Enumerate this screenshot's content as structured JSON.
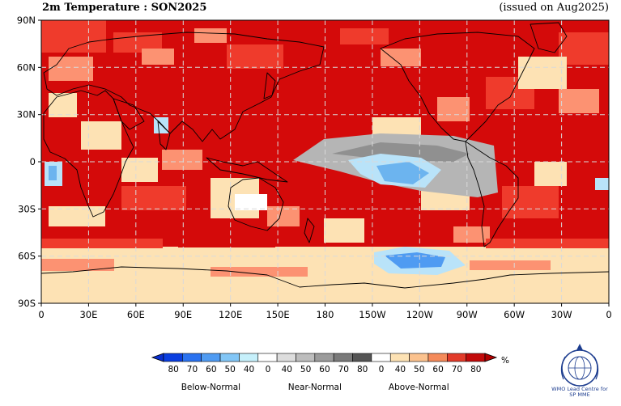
{
  "header": {
    "title": "2m Temperature : SON2025",
    "issued": "(issued on Aug2025)"
  },
  "map": {
    "lat_ticks": [
      "90N",
      "60N",
      "30N",
      "0",
      "30S",
      "60S",
      "90S"
    ],
    "lon_ticks": [
      "0",
      "30E",
      "60E",
      "90E",
      "120E",
      "150E",
      "180",
      "150W",
      "120W",
      "90W",
      "60W",
      "30W",
      "0"
    ],
    "colors": {
      "above_strong": "#d40a0a",
      "above_mid": "#ef3b2c",
      "above_light": "#fc9272",
      "above_pale": "#fde2b4",
      "near_grey": "#b5b5b5",
      "below_light": "#b9e3f9",
      "below_mid": "#6cb4ef",
      "coast": "#000000",
      "grid": "#d9d9d9"
    }
  },
  "colorbar": {
    "unit": "%",
    "below_labels": [
      "80",
      "70",
      "60",
      "50",
      "40"
    ],
    "near_labels": [
      "0",
      "40",
      "50",
      "60",
      "70",
      "80"
    ],
    "above_labels": [
      "0",
      "40",
      "50",
      "60",
      "70",
      "80"
    ],
    "group_below": "Below-Normal",
    "group_near": "Near-Normal",
    "group_above": "Above-Normal",
    "below_colors": [
      "#0a3ee0",
      "#2a72f0",
      "#4f9bf2",
      "#82c6f6",
      "#c6f0fb"
    ],
    "near_colors": [
      "#ffffff",
      "#dddddd",
      "#bdbdbd",
      "#9b9b9b",
      "#7a7a7a",
      "#555555"
    ],
    "above_colors": [
      "#ffffff",
      "#fde2b4",
      "#fbc28e",
      "#f48a5a",
      "#e23b2a",
      "#c20a0a"
    ]
  },
  "logo": {
    "caption_line1": "WMO Lead Centre for",
    "caption_line2": "SP MME"
  }
}
